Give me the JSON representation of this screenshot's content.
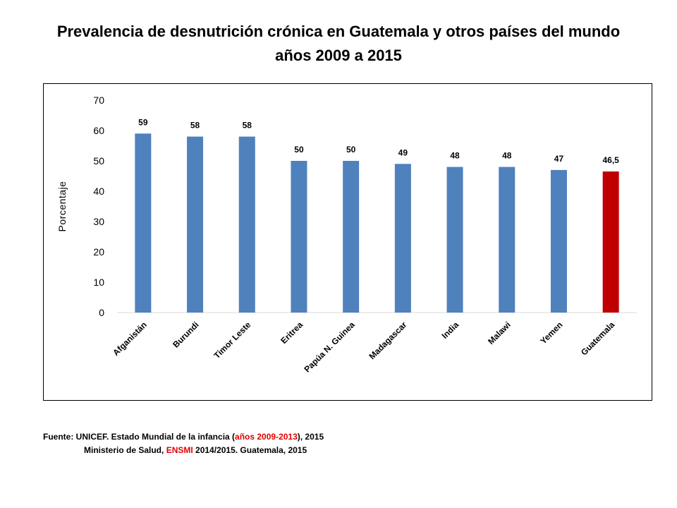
{
  "title_line1": "Prevalencia de desnutrición crónica en Guatemala y otros países del mundo",
  "title_line2": "años 2009 a 2015",
  "colors": {
    "bar": "#4f81bd",
    "highlight": "#c00000",
    "source_highlight": "#e00000"
  },
  "chart_data": {
    "type": "bar",
    "categories": [
      "Afganistán",
      "Burundi",
      "Timor Leste",
      "Eritrea",
      "Papúa N. Guinea",
      "Madagascar",
      "India",
      "Malawi",
      "Yemen",
      "Guatemala"
    ],
    "values": [
      59,
      58,
      58,
      50,
      50,
      49,
      48,
      48,
      47,
      46.5
    ],
    "data_labels": [
      "59",
      "58",
      "58",
      "50",
      "50",
      "49",
      "48",
      "48",
      "47",
      "46,5"
    ],
    "highlight_category": "Guatemala",
    "ylabel": "Porcentaje",
    "xlabel": "",
    "ylim": [
      0,
      70
    ],
    "yticks": [
      0,
      10,
      20,
      30,
      40,
      50,
      60,
      70
    ],
    "grid": false,
    "legend": "none"
  },
  "source": {
    "line1_prefix": "Fuente: UNICEF.  Estado Mundial de la infancia (",
    "line1_red": "años 2009-2013",
    "line1_suffix": "), 2015",
    "line2_prefix": "Ministerio de Salud, ",
    "line2_red": "ENSMI",
    "line2_suffix": " 2014/2015. Guatemala, 2015"
  }
}
